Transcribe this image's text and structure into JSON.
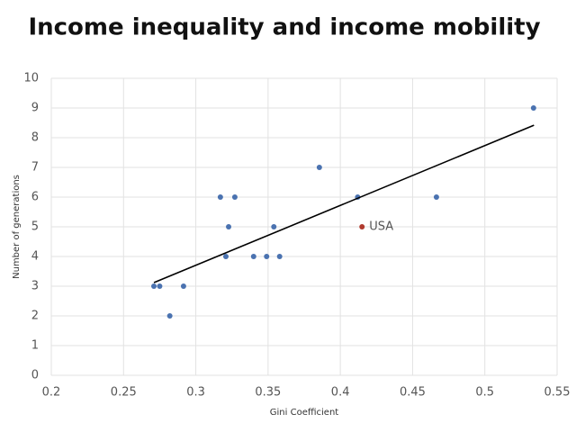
{
  "chart_data": {
    "type": "scatter",
    "title": "Income inequality and income mobility",
    "x_label": "Gini Coefficient",
    "y_label": "Number of generations",
    "series": [
      {
        "color": "#4a72b0",
        "x": [
          0.271,
          0.275,
          0.282,
          0.2915,
          0.317,
          0.327,
          0.3227,
          0.3208,
          0.34,
          0.349,
          0.354,
          0.358,
          0.3855,
          0.412,
          0.4665,
          0.5337
        ],
        "values": [
          3,
          3,
          2,
          3,
          6,
          6,
          5,
          4,
          4,
          4,
          5,
          4,
          7,
          6,
          6,
          9
        ]
      }
    ],
    "annotations": [
      {
        "text": "USA",
        "x": 0.415,
        "y": 5,
        "color": "#b03a2e"
      }
    ],
    "trendline": {
      "x": [
        0.271,
        0.534
      ],
      "y": [
        3.12,
        8.42
      ],
      "color": "#000000"
    },
    "xlim": [
      0.2,
      0.55
    ],
    "xticks": [
      0.2,
      0.25,
      0.3,
      0.35,
      0.4,
      0.45,
      0.5,
      0.55
    ],
    "ylim": [
      0,
      10
    ],
    "yticks": [
      0,
      1,
      2,
      3,
      4,
      5,
      6,
      7,
      8,
      9,
      10
    ],
    "grid": true
  }
}
